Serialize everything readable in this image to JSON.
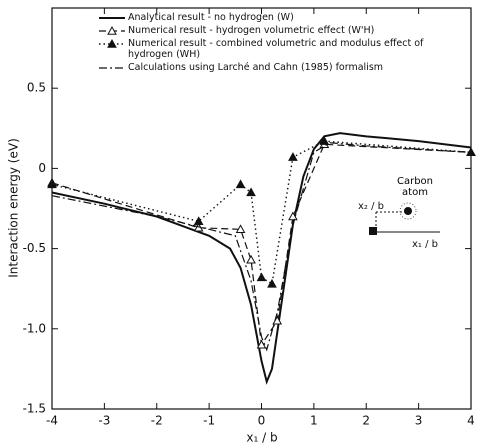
{
  "chart_data": {
    "type": "line",
    "y_label": "Interaction energy (eV)",
    "x_label": "x₁ / b",
    "xlim": [
      -4,
      4
    ],
    "xticks": [
      -4,
      -3,
      -2,
      -1,
      0,
      1,
      2,
      3,
      4
    ],
    "ylim": [
      -1.5,
      1.0
    ],
    "yticks": [
      -1.5,
      {
        "value": -1,
        "label": "-1.0"
      },
      -0.5,
      0,
      0.5
    ],
    "color": "#111111",
    "series": [
      {
        "name": "Analytical result - no hydrogen (W)",
        "dash": "solid",
        "marker": "none",
        "x": [
          -4,
          -3,
          -2,
          -1.5,
          -1,
          -0.6,
          -0.4,
          -0.2,
          0,
          0.1,
          0.2,
          0.4,
          0.6,
          0.8,
          1,
          1.2,
          1.5,
          2,
          3,
          4
        ],
        "values": [
          -0.15,
          -0.22,
          -0.3,
          -0.36,
          -0.42,
          -0.5,
          -0.62,
          -0.85,
          -1.2,
          -1.33,
          -1.25,
          -0.8,
          -0.35,
          -0.05,
          0.12,
          0.2,
          0.22,
          0.2,
          0.17,
          0.13
        ]
      },
      {
        "name": "Numerical result - hydrogen volumetric effect (W'H)",
        "dash": "dashed",
        "marker": "open-triangle",
        "x": [
          -4,
          -1.2,
          -0.4,
          -0.2,
          0,
          0.3,
          0.6,
          1.2,
          4
        ],
        "values": [
          -0.09,
          -0.37,
          -0.38,
          -0.57,
          -1.1,
          -0.95,
          -0.3,
          0.15,
          0.1
        ]
      },
      {
        "name": "Numerical result - combined volumetric and modulus effect of hydrogen (WH)",
        "dash": "dotted",
        "marker": "filled-triangle",
        "x": [
          -4,
          -1.2,
          -0.4,
          -0.2,
          0,
          0.2,
          0.6,
          1.2,
          4
        ],
        "values": [
          -0.1,
          -0.33,
          -0.1,
          -0.15,
          -0.68,
          -0.72,
          0.07,
          0.17,
          0.1
        ]
      },
      {
        "name": "Calculations using Larché and Cahn (1985) formalism",
        "dash": "dashdot",
        "marker": "none",
        "x": [
          -4,
          -2,
          -1,
          -0.5,
          -0.2,
          0,
          0.1,
          0.3,
          0.6,
          1,
          1.3,
          2,
          3,
          4
        ],
        "values": [
          -0.17,
          -0.3,
          -0.38,
          -0.42,
          -0.7,
          -1.05,
          -1.13,
          -0.9,
          -0.35,
          0.1,
          0.16,
          0.14,
          0.12,
          0.1
        ]
      }
    ],
    "inset_labels": [
      "Carbon atom",
      "x₂ / b",
      "x₁ / b"
    ]
  }
}
